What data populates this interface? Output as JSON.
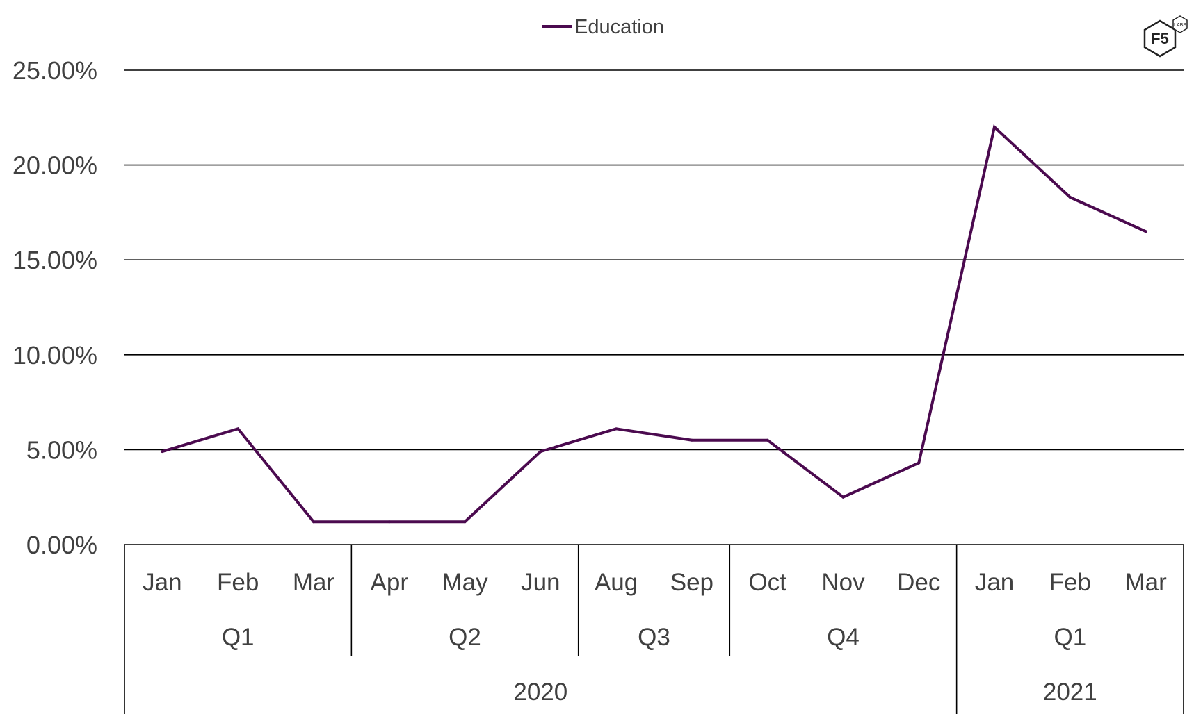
{
  "chart_data": {
    "type": "line",
    "title": "",
    "xlabel": "",
    "ylabel": "",
    "ylim": [
      0,
      25
    ],
    "yticks": [
      "0.00%",
      "5.00%",
      "10.00%",
      "15.00%",
      "20.00%",
      "25.00%"
    ],
    "ytick_values": [
      0,
      5,
      10,
      15,
      20,
      25
    ],
    "grid": true,
    "legend": "top-center",
    "categories": [
      "Jan",
      "Feb",
      "Mar",
      "Apr",
      "May",
      "Jun",
      "Aug",
      "Sep",
      "Oct",
      "Nov",
      "Dec",
      "Jan",
      "Feb",
      "Mar"
    ],
    "quarters": [
      {
        "label": "Q1",
        "count": 3
      },
      {
        "label": "Q2",
        "count": 3
      },
      {
        "label": "Q3",
        "count": 2
      },
      {
        "label": "Q4",
        "count": 3
      },
      {
        "label": "Q1",
        "count": 3
      }
    ],
    "years": [
      {
        "label": "2020",
        "count": 11
      },
      {
        "label": "2021",
        "count": 3
      }
    ],
    "series": [
      {
        "name": "Education",
        "color": "#4B0A4F",
        "values": [
          4.9,
          6.1,
          1.2,
          1.2,
          1.2,
          4.9,
          6.1,
          5.5,
          5.5,
          2.5,
          4.3,
          22.0,
          18.3,
          16.5
        ]
      }
    ]
  },
  "logo": {
    "text": "F5",
    "sub": "LABS",
    "icon": "hexagon-logo-icon"
  }
}
